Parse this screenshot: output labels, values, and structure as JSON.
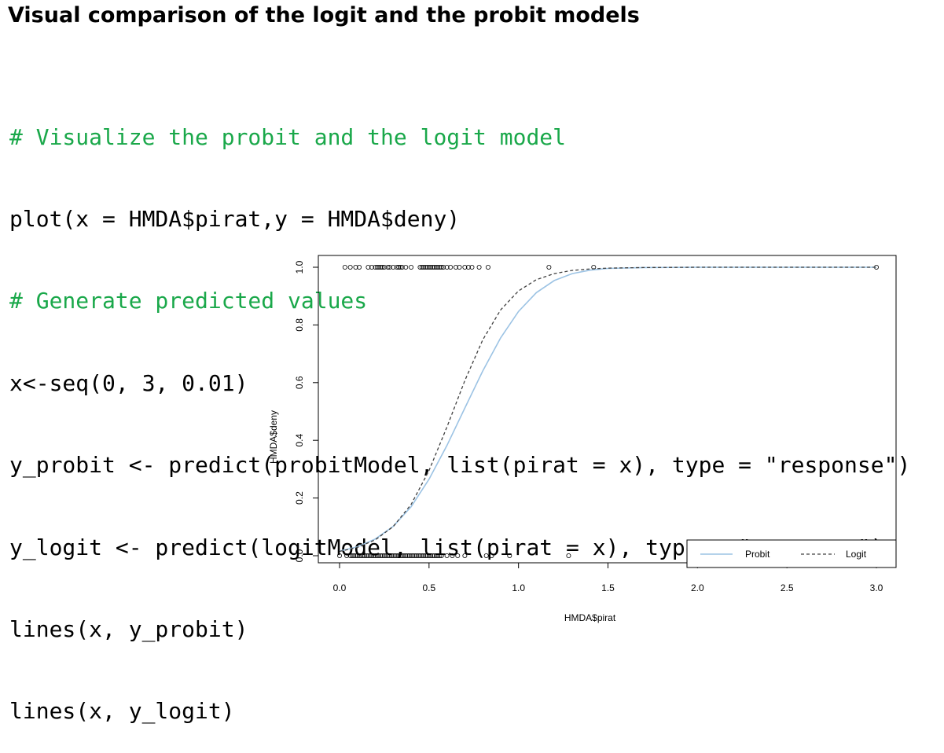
{
  "slide": {
    "title": "Visual comparison of the logit and the probit models"
  },
  "code": [
    {
      "kind": "comment",
      "text": "# Visualize the probit and the logit model"
    },
    {
      "kind": "code",
      "text": "plot(x = HMDA$pirat,y = HMDA$deny)"
    },
    {
      "kind": "comment",
      "text": "# Generate predicted values"
    },
    {
      "kind": "code",
      "text": "x<-seq(0, 3, 0.01)"
    },
    {
      "kind": "code",
      "text": "y_probit <- predict(probitModel, list(pirat = x), type = \"response\")"
    },
    {
      "kind": "code",
      "text": "y_logit <- predict(logitModel, list(pirat = x), type = \"response\")"
    },
    {
      "kind": "code",
      "text": "lines(x, y_probit)"
    },
    {
      "kind": "code",
      "text": "lines(x, y_logit)"
    }
  ],
  "colors": {
    "comment": "#1aa84a",
    "probit": "#9cc3e4",
    "logit": "#404040"
  },
  "chart_data": {
    "type": "scatter",
    "xlabel": "HMDA$pirat",
    "ylabel": "HMDA$deny",
    "xlim": [
      0,
      3
    ],
    "ylim": [
      0,
      1
    ],
    "x_ticks": [
      "0.0",
      "0.5",
      "1.0",
      "1.5",
      "2.0",
      "2.5",
      "3.0"
    ],
    "y_ticks": [
      "0.0",
      "0.2",
      "0.4",
      "0.6",
      "0.8",
      "1.0"
    ],
    "legend": {
      "position": "bottom-right",
      "entries": [
        "Probit",
        "Logit"
      ]
    },
    "points_deny_1": [
      0.03,
      0.06,
      0.09,
      0.11,
      0.16,
      0.18,
      0.2,
      0.21,
      0.22,
      0.23,
      0.24,
      0.25,
      0.27,
      0.28,
      0.3,
      0.32,
      0.33,
      0.34,
      0.35,
      0.37,
      0.4,
      0.45,
      0.46,
      0.47,
      0.48,
      0.49,
      0.5,
      0.51,
      0.52,
      0.53,
      0.54,
      0.55,
      0.56,
      0.57,
      0.58,
      0.6,
      0.62,
      0.65,
      0.67,
      0.7,
      0.72,
      0.74,
      0.78,
      0.83,
      1.17,
      1.42,
      3.0
    ],
    "points_deny_0": [
      0.0,
      0.04,
      0.06,
      0.07,
      0.08,
      0.09,
      0.1,
      0.11,
      0.12,
      0.13,
      0.14,
      0.15,
      0.16,
      0.17,
      0.18,
      0.19,
      0.2,
      0.21,
      0.22,
      0.23,
      0.24,
      0.25,
      0.26,
      0.27,
      0.28,
      0.29,
      0.3,
      0.31,
      0.32,
      0.33,
      0.34,
      0.35,
      0.36,
      0.37,
      0.38,
      0.39,
      0.4,
      0.41,
      0.42,
      0.43,
      0.44,
      0.45,
      0.46,
      0.47,
      0.48,
      0.49,
      0.5,
      0.51,
      0.52,
      0.53,
      0.54,
      0.55,
      0.56,
      0.57,
      0.6,
      0.63,
      0.66,
      0.7,
      0.82,
      0.85,
      0.95,
      1.28
    ],
    "series": [
      {
        "name": "Probit",
        "style": "solid",
        "x": [
          0.0,
          0.1,
          0.2,
          0.3,
          0.4,
          0.5,
          0.6,
          0.7,
          0.8,
          0.9,
          1.0,
          1.1,
          1.2,
          1.3,
          1.4,
          1.5,
          1.7,
          2.0,
          2.5,
          3.0
        ],
        "y": [
          0.016,
          0.031,
          0.058,
          0.102,
          0.17,
          0.265,
          0.382,
          0.512,
          0.64,
          0.755,
          0.847,
          0.912,
          0.954,
          0.978,
          0.99,
          0.996,
          0.999,
          1.0,
          1.0,
          1.0
        ]
      },
      {
        "name": "Logit",
        "style": "dashed",
        "x": [
          0.0,
          0.1,
          0.2,
          0.3,
          0.4,
          0.5,
          0.6,
          0.7,
          0.8,
          0.9,
          1.0,
          1.1,
          1.2,
          1.3,
          1.4,
          1.5,
          1.7,
          2.0,
          2.5,
          3.0
        ],
        "y": [
          0.015,
          0.029,
          0.055,
          0.101,
          0.178,
          0.295,
          0.446,
          0.607,
          0.748,
          0.852,
          0.918,
          0.957,
          0.978,
          0.989,
          0.994,
          0.997,
          0.999,
          1.0,
          1.0,
          1.0
        ]
      }
    ]
  }
}
